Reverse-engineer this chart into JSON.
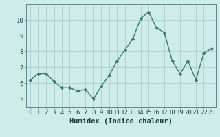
{
  "xlabel": "Humidex (Indice chaleur)",
  "x": [
    0,
    1,
    2,
    3,
    4,
    5,
    6,
    7,
    8,
    9,
    10,
    11,
    12,
    13,
    14,
    15,
    16,
    17,
    18,
    19,
    20,
    21,
    22,
    23
  ],
  "y": [
    6.2,
    6.6,
    6.6,
    6.1,
    5.7,
    5.7,
    5.5,
    5.6,
    5.0,
    5.8,
    6.5,
    7.4,
    8.1,
    8.8,
    10.1,
    10.5,
    9.5,
    9.2,
    7.4,
    6.6,
    7.4,
    6.2,
    7.9,
    8.2
  ],
  "line_color": "#2e7d6e",
  "marker": "D",
  "marker_size": 2.2,
  "line_width": 1.0,
  "bg_color": "#ceecea",
  "grid_color": "#b0cece",
  "plot_bg": "#ceecea",
  "ylim": [
    4.5,
    11.0
  ],
  "yticks": [
    5,
    6,
    7,
    8,
    9,
    10
  ],
  "xticks": [
    0,
    1,
    2,
    3,
    4,
    5,
    6,
    7,
    8,
    9,
    10,
    11,
    12,
    13,
    14,
    15,
    16,
    17,
    18,
    19,
    20,
    21,
    22,
    23
  ],
  "xlabel_fontsize": 7.5,
  "tick_fontsize": 6.5,
  "tick_color": "#1a4a4a",
  "xlabel_color": "#1a3a3a",
  "spine_color": "#5a8a8a"
}
